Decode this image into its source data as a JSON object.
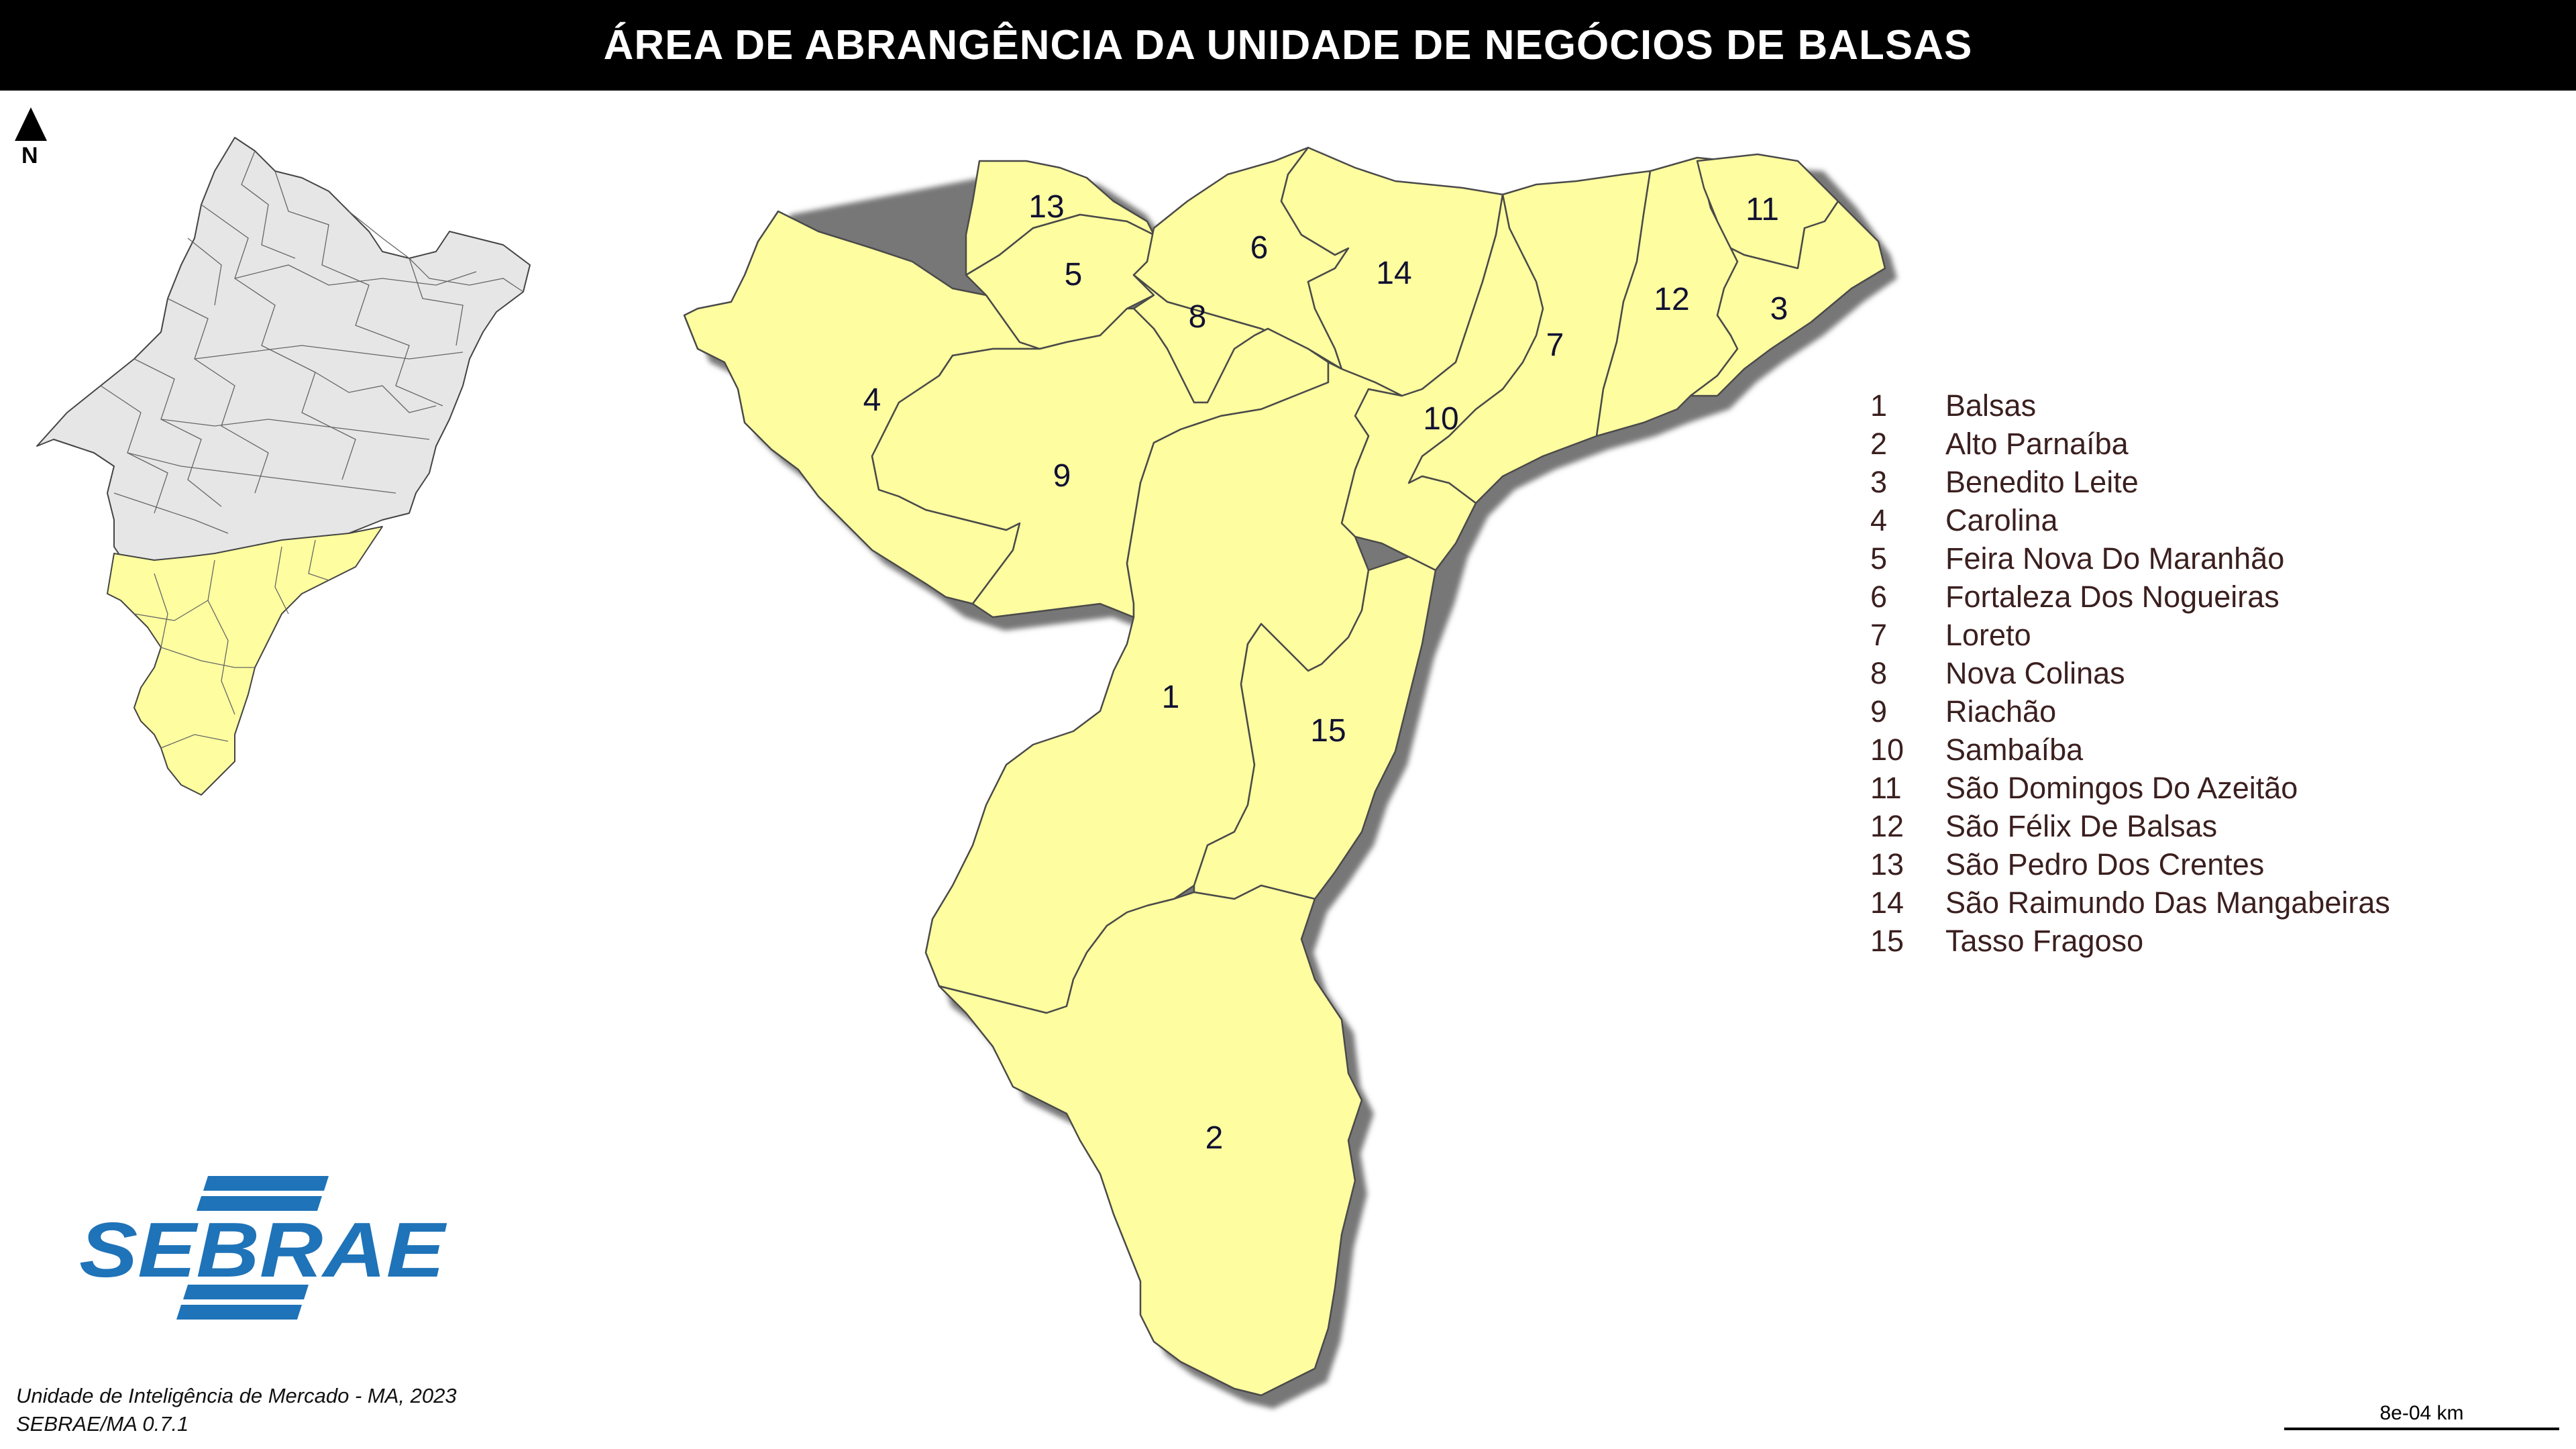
{
  "title": "ÁREA DE ABRANGÊNCIA DA UNIDADE DE NEGÓCIOS DE BALSAS",
  "north_label": "N",
  "legend": [
    {
      "num": "1",
      "name": "Balsas"
    },
    {
      "num": "2",
      "name": "Alto Parnaíba"
    },
    {
      "num": "3",
      "name": "Benedito Leite"
    },
    {
      "num": "4",
      "name": "Carolina"
    },
    {
      "num": "5",
      "name": "Feira Nova Do Maranhão"
    },
    {
      "num": "6",
      "name": "Fortaleza Dos Nogueiras"
    },
    {
      "num": "7",
      "name": "Loreto"
    },
    {
      "num": "8",
      "name": "Nova Colinas"
    },
    {
      "num": "9",
      "name": "Riachão"
    },
    {
      "num": "10",
      "name": "Sambaíba"
    },
    {
      "num": "11",
      "name": "São Domingos Do Azeitão"
    },
    {
      "num": "12",
      "name": "São Félix De Balsas"
    },
    {
      "num": "13",
      "name": "São Pedro Dos Crentes"
    },
    {
      "num": "14",
      "name": "São Raimundo Das Mangabeiras"
    },
    {
      "num": "15",
      "name": "Tasso Fragoso"
    }
  ],
  "map_labels": [
    "1",
    "2",
    "3",
    "4",
    "5",
    "6",
    "7",
    "8",
    "9",
    "10",
    "11",
    "12",
    "13",
    "14",
    "15"
  ],
  "logo_text": "SEBRAE",
  "footer": {
    "line1": "Unidade de Inteligência de Mercado - MA, 2023",
    "line2": "SEBRAE/MA 0.7.1"
  },
  "scale_bar_label": "8e-04 km",
  "colors": {
    "highlight": "#fefea0",
    "inset_other": "#e6e6e6",
    "brand_blue": "#1f73b8",
    "title_bar": "#000000"
  }
}
